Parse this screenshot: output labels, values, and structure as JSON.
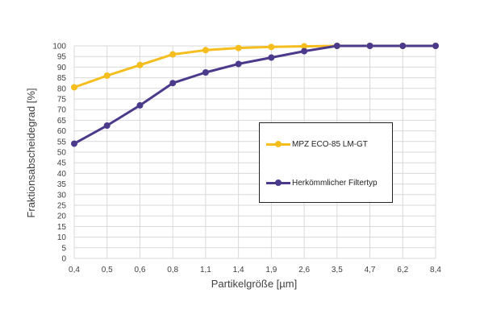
{
  "chart_data": {
    "type": "line",
    "title": "",
    "xlabel": "Partikelgröße [µm]",
    "ylabel": "Fraktionsabscheidegrad [%]",
    "categories": [
      "0,4",
      "0,5",
      "0,6",
      "0,8",
      "1,1",
      "1,4",
      "1,9",
      "2,6",
      "3,5",
      "4,7",
      "6,2",
      "8,4"
    ],
    "ylim": [
      0,
      100
    ],
    "ytick_step": 5,
    "grid": true,
    "legend_position": "right",
    "series": [
      {
        "name": "MPZ ECO-85 LM-GT",
        "color": "#F5BE1E",
        "values": [
          80.5,
          86,
          91,
          96,
          98,
          99,
          99.5,
          99.8,
          100,
          100,
          100,
          100
        ]
      },
      {
        "name": "Herkömmlicher Filtertyp",
        "color": "#4B3A8C",
        "values": [
          54,
          62.5,
          72,
          82.5,
          87.5,
          91.5,
          94.5,
          97.5,
          100,
          100,
          100,
          100
        ]
      }
    ]
  }
}
